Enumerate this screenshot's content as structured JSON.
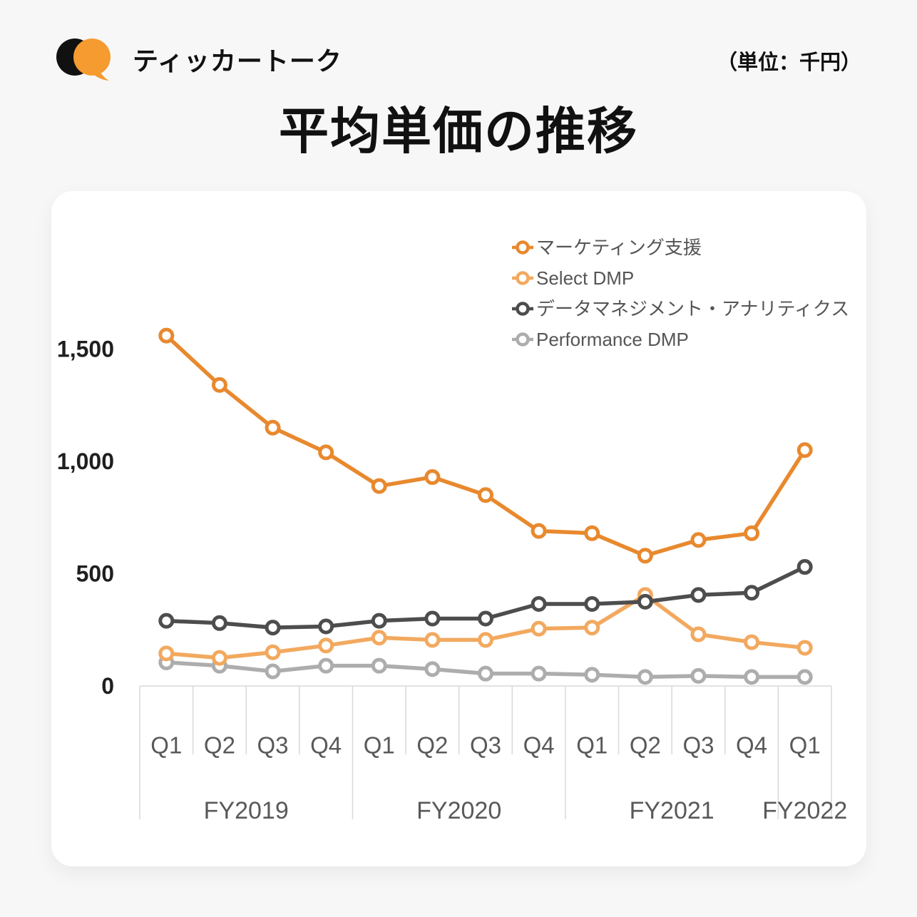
{
  "header": {
    "brand": "ティッカートーク",
    "unit_note": "（単位：千円）"
  },
  "title": "平均単価の推移",
  "colors": {
    "page_bg": "#F7F7F7",
    "card_bg": "#FFFFFF",
    "logo_black": "#111111",
    "logo_orange": "#F59B2F",
    "axis_line": "#D9D9D9",
    "axis_text": "#595959",
    "ytick_text": "#1F1F1F",
    "series_marketing": "#E8892E",
    "series_select_dmp": "#F2A95F",
    "series_data_mgmt": "#4D4D4D",
    "series_performance_dmp": "#ADADAD"
  },
  "chart_data": {
    "type": "line",
    "title": "平均単価の推移",
    "unit": "千円",
    "grid": false,
    "legend_position": "top-right",
    "ylim": [
      0,
      1650
    ],
    "yticks": [
      {
        "label": "1,500",
        "value": 1500
      },
      {
        "label": "1,000",
        "value": 1000
      },
      {
        "label": "500",
        "value": 500
      },
      {
        "label": "0",
        "value": 0
      }
    ],
    "x_groups": [
      {
        "label": "FY2019",
        "span": 4
      },
      {
        "label": "FY2020",
        "span": 4
      },
      {
        "label": "FY2021",
        "span": 4
      },
      {
        "label": "FY2022",
        "span": 1
      }
    ],
    "categories": [
      "Q1",
      "Q2",
      "Q3",
      "Q4",
      "Q1",
      "Q2",
      "Q3",
      "Q4",
      "Q1",
      "Q2",
      "Q3",
      "Q4",
      "Q1"
    ],
    "series": [
      {
        "name": "マーケティング支援",
        "color": "#E8892E",
        "values": [
          1560,
          1340,
          1150,
          1040,
          890,
          930,
          850,
          690,
          680,
          580,
          650,
          680,
          1050
        ]
      },
      {
        "name": "Select DMP",
        "color": "#F2A95F",
        "values": [
          145,
          125,
          150,
          180,
          215,
          205,
          205,
          255,
          260,
          405,
          230,
          195,
          170
        ]
      },
      {
        "name": "データマネジメント・アナリティクス",
        "color": "#4D4D4D",
        "values": [
          290,
          280,
          260,
          265,
          290,
          300,
          300,
          365,
          365,
          375,
          405,
          415,
          530
        ]
      },
      {
        "name": "Performance DMP",
        "color": "#ADADAD",
        "values": [
          105,
          90,
          65,
          90,
          90,
          75,
          55,
          55,
          50,
          40,
          45,
          40,
          40
        ]
      }
    ]
  }
}
